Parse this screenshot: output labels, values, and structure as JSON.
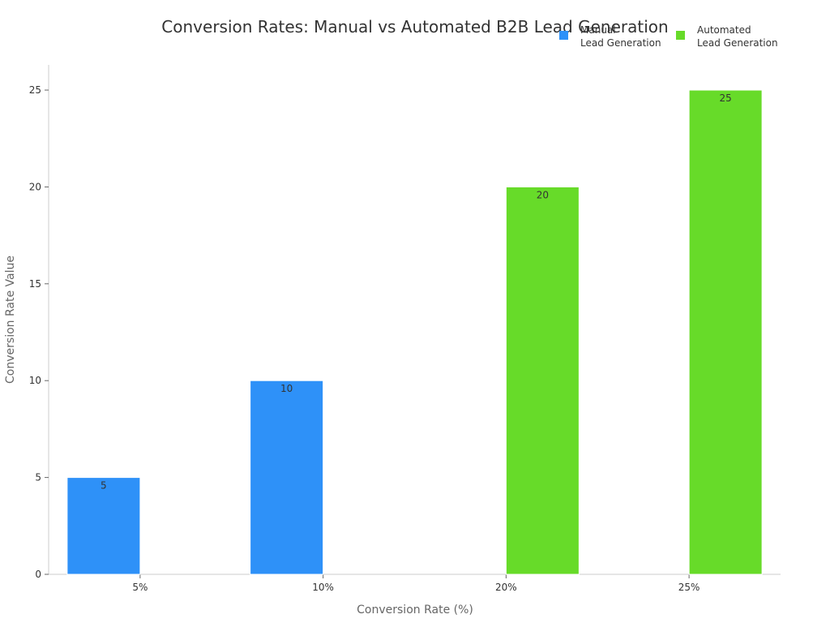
{
  "chart_data": {
    "type": "bar",
    "title": "Conversion Rates: Manual vs Automated B2B Lead Generation",
    "xlabel": "Conversion Rate (%)",
    "ylabel": "Conversion Rate Value",
    "categories": [
      "5%",
      "10%",
      "20%",
      "25%"
    ],
    "series": [
      {
        "name": "Manual\nLead Generation",
        "color": "#2e91f8",
        "values": [
          5,
          10,
          null,
          null
        ]
      },
      {
        "name": "Automated\nLead Generation",
        "color": "#67db29",
        "values": [
          null,
          null,
          20,
          25
        ]
      }
    ],
    "ylim": [
      0,
      26.3
    ],
    "yticks": [
      0,
      5,
      10,
      15,
      20,
      25
    ],
    "grid": false,
    "legend": "top-right",
    "data_labels": true
  }
}
